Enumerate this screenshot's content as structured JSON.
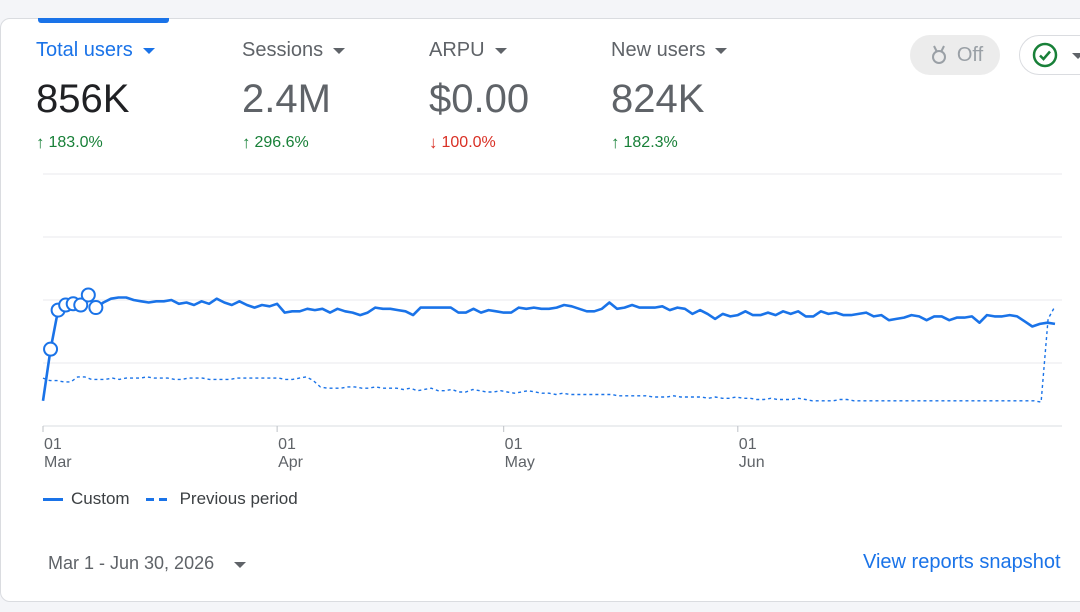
{
  "metrics": [
    {
      "label": "Total users",
      "value": "856K",
      "change": "183.0%",
      "direction": "up"
    },
    {
      "label": "Sessions",
      "value": "2.4M",
      "change": "296.6%",
      "direction": "up"
    },
    {
      "label": "ARPU",
      "value": "$0.00",
      "change": "100.0%",
      "direction": "down"
    },
    {
      "label": "New users",
      "value": "824K",
      "change": "182.3%",
      "direction": "up"
    }
  ],
  "toolbar": {
    "off_label": "Off"
  },
  "legend": {
    "custom": "Custom",
    "previous": "Previous period"
  },
  "date_range": "Mar 1 - Jun 30, 2026",
  "view_link": "View reports snapshot",
  "colors": {
    "accent": "#1a73e8",
    "up": "#188038",
    "down": "#d93025"
  },
  "chart_data": {
    "type": "line",
    "x_ticks": [
      {
        "day": "01",
        "month": "Mar"
      },
      {
        "day": "01",
        "month": "Apr"
      },
      {
        "day": "01",
        "month": "May"
      },
      {
        "day": "01",
        "month": "Jun"
      }
    ],
    "grid": true,
    "y_axis_side": "right",
    "series": [
      {
        "name": "Custom",
        "style": "solid",
        "values": [
          2.0,
          6.1,
          9.2,
          9.6,
          9.7,
          9.6,
          10.4,
          9.4,
          9.8,
          10.1,
          10.2,
          10.2,
          10.0,
          9.9,
          9.8,
          9.9,
          9.9,
          10.0,
          9.7,
          9.8,
          9.6,
          9.9,
          9.7,
          10.1,
          9.8,
          9.6,
          9.9,
          9.6,
          9.4,
          9.6,
          9.5,
          9.7,
          9.0,
          9.1,
          9.1,
          9.3,
          9.2,
          9.3,
          9.0,
          9.3,
          9.1,
          9.0,
          8.8,
          9.0,
          9.4,
          9.3,
          9.3,
          9.2,
          9.1,
          8.8,
          9.4,
          9.4,
          9.4,
          9.4,
          9.4,
          9.0,
          9.0,
          9.3,
          9.0,
          9.2,
          9.1,
          9.0,
          9.0,
          9.4,
          9.3,
          9.4,
          9.3,
          9.3,
          9.4,
          9.6,
          9.5,
          9.3,
          9.1,
          9.1,
          9.3,
          9.8,
          9.3,
          9.4,
          9.6,
          9.4,
          9.4,
          9.4,
          9.5,
          9.2,
          9.4,
          9.3,
          8.9,
          9.2,
          8.9,
          8.5,
          8.9,
          8.7,
          8.8,
          9.1,
          8.8,
          8.8,
          9.0,
          8.8,
          9.1,
          8.9,
          9.1,
          8.7,
          8.7,
          9.1,
          8.9,
          9.0,
          8.8,
          8.8,
          8.9,
          9.0,
          8.7,
          8.8,
          8.4,
          8.5,
          8.6,
          8.8,
          8.7,
          8.4,
          8.7,
          8.7,
          8.4,
          8.6,
          8.6,
          8.7,
          8.2,
          8.8,
          8.7,
          8.7,
          8.8,
          8.7,
          8.3,
          7.9,
          8.1,
          8.2,
          8.1
        ],
        "markers_first_n": 8
      },
      {
        "name": "Previous period",
        "style": "dashed",
        "values": [
          3.8,
          3.6,
          3.6,
          3.5,
          3.5,
          3.9,
          3.9,
          3.7,
          3.7,
          3.7,
          3.8,
          3.7,
          3.8,
          3.8,
          3.8,
          3.9,
          3.8,
          3.8,
          3.8,
          3.7,
          3.7,
          3.8,
          3.8,
          3.8,
          3.7,
          3.7,
          3.7,
          3.7,
          3.8,
          3.8,
          3.8,
          3.8,
          3.8,
          3.8,
          3.8,
          3.7,
          3.7,
          3.8,
          3.9,
          3.6,
          3.1,
          3.0,
          3.0,
          3.0,
          3.1,
          3.1,
          3.0,
          3.0,
          3.1,
          3.0,
          3.0,
          3.0,
          2.9,
          3.0,
          2.8,
          2.9,
          3.0,
          2.8,
          2.8,
          2.9,
          2.7,
          2.7,
          2.9,
          2.8,
          2.7,
          2.7,
          2.8,
          2.7,
          2.6,
          2.7,
          2.8,
          2.7,
          2.6,
          2.6,
          2.5,
          2.6,
          2.5,
          2.5,
          2.5,
          2.5,
          2.5,
          2.5,
          2.5,
          2.4,
          2.4,
          2.4,
          2.4,
          2.4,
          2.3,
          2.3,
          2.3,
          2.4,
          2.3,
          2.3,
          2.3,
          2.3,
          2.2,
          2.3,
          2.2,
          2.2,
          2.3,
          2.2,
          2.2,
          2.1,
          2.1,
          2.2,
          2.1,
          2.1,
          2.1,
          2.2,
          2.1,
          2.0,
          2.0,
          2.0,
          2.0,
          2.1,
          2.1,
          2.0,
          2.0,
          2.0,
          2.0,
          2.0,
          2.0,
          2.0,
          2.0,
          2.0,
          2.0,
          2.0,
          2.0,
          2.0,
          2.0,
          2.0,
          2.0,
          2.0,
          2.0,
          2.0,
          2.0,
          2.0,
          2.0,
          2.0,
          2.0,
          2.0,
          2.0,
          2.0,
          1.9,
          8.5,
          9.5
        ]
      }
    ]
  }
}
